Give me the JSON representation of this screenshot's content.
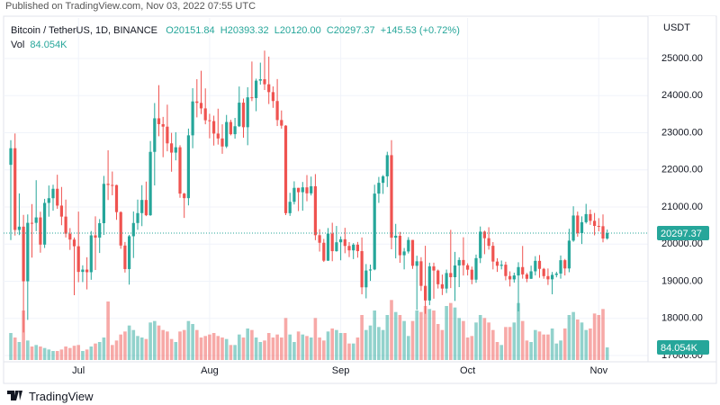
{
  "header": {
    "published": "Published on TradingView.com, Nov 03, 2022 07:55 UTC"
  },
  "chart_data": {
    "type": "candlestick",
    "legend": {
      "symbol": "Bitcoin / TetherUS, 1D, BINANCE",
      "ohlc": [
        "O20151.84",
        "H20393.32",
        "L20120.00",
        "C20297.37"
      ],
      "change": "+145.53 (+0.72%)",
      "volume_title": "Vol"
    },
    "quote_unit": "USDT",
    "up_color": "#26a69a",
    "down_color": "#ef5350",
    "grid": true,
    "ylim": [
      16880,
      26090
    ],
    "yticks": [
      {
        "value": 17000,
        "label": "17000.00"
      },
      {
        "value": 18000,
        "label": "18000.00"
      },
      {
        "value": 19000,
        "label": "19000.00"
      },
      {
        "value": 20000,
        "label": "20000.00"
      },
      {
        "value": 21000,
        "label": "21000.00"
      },
      {
        "value": 22000,
        "label": "22000.00"
      },
      {
        "value": 23000,
        "label": "23000.00"
      },
      {
        "value": 24000,
        "label": "24000.00"
      },
      {
        "value": 25000,
        "label": "25000.00"
      }
    ],
    "xticks": [
      {
        "value": 16,
        "label": "Jul"
      },
      {
        "value": 47,
        "label": "Aug"
      },
      {
        "value": 78,
        "label": "Sep"
      },
      {
        "value": 108,
        "label": "Oct"
      },
      {
        "value": 139,
        "label": "Nov"
      }
    ],
    "vlim": [
      0,
      600
    ],
    "open": [
      22136,
      22583,
      20382,
      20471,
      19000,
      20574,
      20573,
      20720,
      19987,
      21110,
      21237,
      21491,
      21038,
      20742,
      20281,
      20123,
      19943,
      19252,
      19315,
      19244,
      20236,
      20175,
      20564,
      21624,
      21594,
      21591,
      20862,
      19963,
      19329,
      20213,
      20569,
      20836,
      21190,
      20779,
      22485,
      23389,
      23231,
      23164,
      22714,
      22465,
      22609,
      21361,
      21239,
      22930,
      23843,
      23804,
      23656,
      23336,
      23314,
      22978,
      22846,
      22630,
      23289,
      22961,
      23175,
      23810,
      23149,
      23954,
      23934,
      24403,
      24441,
      24305,
      24094,
      23854,
      23342,
      23191,
      20834,
      21140,
      21516,
      21399,
      21529,
      21368,
      21559,
      20241,
      20037,
      19555,
      20285,
      19811,
      20050,
      20131,
      19952,
      19832,
      19986,
      19812,
      18837,
      19290,
      19319,
      21361,
      21651,
      21826,
      22396,
      20173,
      20226,
      19701,
      19803,
      20113,
      19416,
      19538,
      18876,
      18483,
      19402,
      19289,
      18920,
      18803,
      19222,
      19110,
      19426,
      19573,
      19431,
      19312,
      19044,
      19623,
      20336,
      20160,
      19955,
      19531,
      19417,
      19446,
      19141,
      19051,
      19157,
      19382,
      19185,
      19067,
      19268,
      19550,
      19334,
      19139,
      19053,
      19172,
      19208,
      19567,
      19345,
      20095,
      20771,
      20295,
      20591,
      20809,
      20627,
      20491,
      20483,
      20151.84
    ],
    "high": [
      22800,
      22980,
      21366,
      20787,
      20800,
      21080,
      21722,
      20873,
      21220,
      21579,
      21600,
      21869,
      21540,
      21200,
      20432,
      20180,
      20876,
      19430,
      19647,
      20354,
      20750,
      20675,
      21838,
      22527,
      21956,
      21600,
      20884,
      20059,
      20250,
      20880,
      21200,
      21588,
      21685,
      22777,
      23800,
      24280,
      23427,
      23756,
      22998,
      23014,
      22663,
      21382,
      23112,
      24199,
      24442,
      24668,
      24194,
      23510,
      23460,
      23648,
      23227,
      23480,
      23350,
      23400,
      24245,
      23920,
      24226,
      24918,
      24456,
      24888,
      25211,
      25050,
      24247,
      24446,
      23600,
      23202,
      21382,
      21692,
      21516,
      21674,
      21860,
      21819,
      21886,
      20402,
      20141,
      20433,
      20576,
      20490,
      20208,
      20440,
      20055,
      20028,
      20059,
      20180,
      19464,
      19449,
      21600,
      21810,
      21860,
      22488,
      22799,
      20546,
      20330,
      19896,
      20189,
      20117,
      19688,
      19648,
      19956,
      19500,
      19500,
      19316,
      19180,
      19315,
      20385,
      19790,
      19645,
      20185,
      19484,
      19395,
      19719,
      20475,
      20365,
      20456,
      20055,
      19622,
      19559,
      19526,
      19267,
      19232,
      19513,
      19951,
      19227,
      19421,
      19676,
      19706,
      19360,
      19345,
      19250,
      19257,
      19695,
      19601,
      20415,
      21020,
      20877,
      20750,
      21085,
      20931,
      20840,
      20700,
      20800,
      20393.32
    ],
    "low": [
      20111,
      20232,
      20243,
      17622,
      17960,
      19638,
      20349,
      19770,
      19897,
      20740,
      20900,
      20950,
      20510,
      20180,
      19845,
      18626,
      18975,
      18978,
      18781,
      19040,
      19304,
      19762,
      20248,
      21188,
      21316,
      20655,
      19875,
      19235,
      18910,
      19627,
      20384,
      20485,
      20755,
      20762,
      21581,
      22906,
      22341,
      22500,
      21950,
      22257,
      21250,
      20706,
      21043,
      22582,
      23414,
      23502,
      23228,
      22850,
      22655,
      22681,
      22432,
      22587,
      22929,
      22840,
      23154,
      22865,
      22664,
      23852,
      23580,
      24296,
      24150,
      23773,
      23671,
      23180,
      23110,
      20783,
      20761,
      21068,
      20890,
      20900,
      21156,
      21311,
      20107,
      19800,
      19520,
      19550,
      19540,
      19797,
      19565,
      19755,
      19652,
      19597,
      19636,
      18650,
      18540,
      19011,
      19297,
      21111,
      21353,
      21538,
      19860,
      19617,
      19497,
      19320,
      19748,
      19334,
      18232,
      18740,
      18125,
      18356,
      18532,
      18805,
      18629,
      18682,
      18816,
      18471,
      18843,
      19155,
      19159,
      18920,
      18959,
      19490,
      19730,
      19853,
      19320,
      19252,
      19320,
      19026,
      18860,
      18965,
      18190,
      19070,
      18975,
      19064,
      19160,
      19096,
      19068,
      18900,
      18650,
      19106,
      19070,
      19157,
      19243,
      20063,
      20200,
      20003,
      20553,
      20519,
      20237,
      20345,
      20048,
      20120
    ],
    "close": [
      22583,
      20382,
      20471,
      19000,
      20574,
      20573,
      20720,
      19987,
      21110,
      21237,
      21491,
      21038,
      20742,
      20281,
      20123,
      19943,
      19252,
      19315,
      19244,
      20236,
      20175,
      20564,
      21624,
      21594,
      21591,
      20862,
      19963,
      19329,
      20213,
      20569,
      20836,
      21190,
      20779,
      22485,
      23389,
      23231,
      23164,
      22714,
      22465,
      22609,
      21361,
      21239,
      22930,
      23843,
      23804,
      23656,
      23336,
      23314,
      22978,
      22846,
      22630,
      23289,
      22961,
      23175,
      23810,
      23149,
      23954,
      23934,
      24403,
      24441,
      24305,
      24094,
      23854,
      23342,
      23191,
      20834,
      21140,
      21516,
      21399,
      21529,
      21368,
      21559,
      20241,
      20037,
      19555,
      20285,
      19811,
      20050,
      20131,
      19952,
      19832,
      19986,
      19812,
      18837,
      19290,
      19319,
      21361,
      21651,
      21826,
      22396,
      20173,
      20226,
      19701,
      19803,
      20113,
      19416,
      19538,
      18876,
      18483,
      19402,
      19289,
      18920,
      18803,
      19222,
      19110,
      19426,
      19573,
      19431,
      19312,
      19044,
      19623,
      20336,
      20160,
      19955,
      19531,
      19417,
      19446,
      19141,
      19051,
      19157,
      19382,
      19185,
      19067,
      19268,
      19550,
      19334,
      19139,
      19053,
      19172,
      19208,
      19567,
      19345,
      20095,
      20771,
      20295,
      20591,
      20809,
      20627,
      20491,
      20483,
      20151.84,
      20297.37
    ],
    "volume": [
      180,
      150,
      120,
      330,
      130,
      90,
      100,
      90,
      80,
      70,
      60,
      60,
      70,
      90,
      80,
      95,
      100,
      60,
      70,
      90,
      110,
      120,
      150,
      390,
      100,
      130,
      170,
      190,
      230,
      200,
      160,
      150,
      140,
      250,
      260,
      230,
      200,
      190,
      140,
      120,
      190,
      200,
      260,
      240,
      200,
      150,
      160,
      170,
      180,
      160,
      150,
      140,
      100,
      100,
      170,
      150,
      210,
      200,
      150,
      120,
      130,
      180,
      150,
      170,
      150,
      280,
      170,
      120,
      190,
      170,
      160,
      150,
      280,
      150,
      130,
      190,
      210,
      200,
      180,
      180,
      110,
      110,
      150,
      300,
      200,
      230,
      330,
      220,
      200,
      300,
      400,
      320,
      300,
      260,
      160,
      260,
      330,
      320,
      360,
      340,
      330,
      240,
      200,
      360,
      380,
      350,
      280,
      260,
      150,
      160,
      250,
      300,
      280,
      250,
      200,
      120,
      100,
      220,
      220,
      250,
      380,
      260,
      130,
      120,
      200,
      190,
      170,
      170,
      210,
      110,
      130,
      210,
      300,
      320,
      270,
      250,
      200,
      210,
      310,
      300,
      340,
      84.054
    ],
    "volume_label": "84.054K"
  },
  "footer": {
    "brand": "TradingView"
  }
}
